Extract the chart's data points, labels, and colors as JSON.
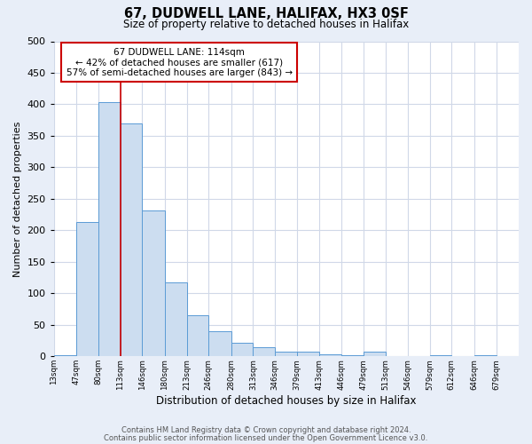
{
  "title": "67, DUDWELL LANE, HALIFAX, HX3 0SF",
  "subtitle": "Size of property relative to detached houses in Halifax",
  "xlabel": "Distribution of detached houses by size in Halifax",
  "ylabel": "Number of detached properties",
  "footer_line1": "Contains HM Land Registry data © Crown copyright and database right 2024.",
  "footer_line2": "Contains public sector information licensed under the Open Government Licence v3.0.",
  "bin_edges": [
    13,
    47,
    80,
    113,
    146,
    180,
    213,
    246,
    280,
    313,
    346,
    379,
    413,
    446,
    479,
    513,
    546,
    579,
    612,
    646,
    679
  ],
  "bin_labels": [
    "13sqm",
    "47sqm",
    "80sqm",
    "113sqm",
    "146sqm",
    "180sqm",
    "213sqm",
    "246sqm",
    "280sqm",
    "313sqm",
    "346sqm",
    "379sqm",
    "413sqm",
    "446sqm",
    "479sqm",
    "513sqm",
    "546sqm",
    "579sqm",
    "612sqm",
    "646sqm",
    "679sqm"
  ],
  "counts": [
    2,
    213,
    404,
    369,
    231,
    118,
    65,
    40,
    22,
    15,
    8,
    8,
    3,
    2,
    7,
    1,
    0,
    2,
    0,
    2
  ],
  "bar_color": "#ccddf0",
  "bar_edge_color": "#5b9bd5",
  "property_line_x": 113,
  "property_line_color": "#cc0000",
  "annotation_title": "67 DUDWELL LANE: 114sqm",
  "annotation_line1": "← 42% of detached houses are smaller (617)",
  "annotation_line2": "57% of semi-detached houses are larger (843) →",
  "annotation_box_color": "white",
  "annotation_box_edge_color": "#cc0000",
  "ylim": [
    0,
    500
  ],
  "fig_background_color": "#e8eef8",
  "plot_background_color": "#ffffff",
  "grid_color": "#d0d8e8"
}
